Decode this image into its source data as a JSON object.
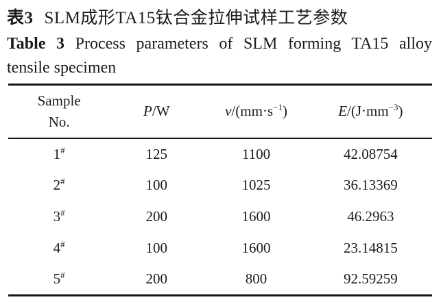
{
  "caption_zh": {
    "label": "表3",
    "text": "SLM成形TA15钛合金拉伸试样工艺参数"
  },
  "caption_en": {
    "label": "Table 3",
    "line1_rest": "Process parameters of SLM forming TA15 alloy",
    "line2": "tensile specimen"
  },
  "table": {
    "header": {
      "col1_line1": "Sample",
      "col1_line2": "No.",
      "col2": {
        "var": "P",
        "rest": "/W"
      },
      "col3": {
        "var": "v",
        "pre": "/(mm·s",
        "sup": "−1",
        "post": ")"
      },
      "col4": {
        "var": "E",
        "pre": "/(J·mm",
        "sup": "−3",
        "post": ")"
      }
    },
    "rows": [
      {
        "sample": "1",
        "sample_sup": "#",
        "p": "125",
        "v": "1100",
        "e": "42.08754"
      },
      {
        "sample": "2",
        "sample_sup": "#",
        "p": "100",
        "v": "1025",
        "e": "36.13369"
      },
      {
        "sample": "3",
        "sample_sup": "#",
        "p": "200",
        "v": "1600",
        "e": "46.2963"
      },
      {
        "sample": "4",
        "sample_sup": "#",
        "p": "100",
        "v": "1600",
        "e": "23.14815"
      },
      {
        "sample": "5",
        "sample_sup": "#",
        "p": "200",
        "v": "800",
        "e": "92.59259"
      }
    ]
  },
  "colors": {
    "text": "#1b1b1b",
    "rule": "#161616",
    "background": "#ffffff"
  }
}
